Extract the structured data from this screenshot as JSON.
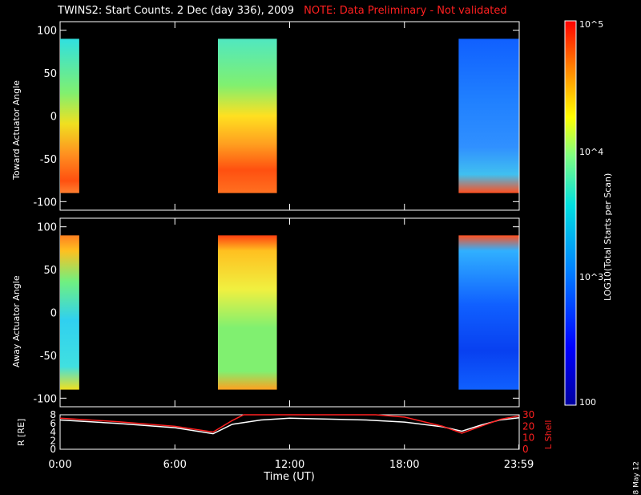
{
  "header": {
    "title": "TWINS2: Start Counts.  2 Dec (day 336), 2009",
    "note": "NOTE: Data Preliminary - Not validated"
  },
  "stamp": "8 May 12",
  "chart_data": [
    {
      "type": "heatmap",
      "panel": "top",
      "ylabel": "Toward Actuator Angle",
      "ylim": [
        -110,
        110
      ],
      "yticks": [
        "100",
        "50",
        "0",
        "-50",
        "-100"
      ],
      "xlim_hours": [
        0,
        24
      ],
      "blocks": [
        {
          "start": "0:00",
          "end": "1:00"
        },
        {
          "start": "8:15",
          "end": "11:20"
        },
        {
          "start": "20:50",
          "end": "23:59"
        }
      ]
    },
    {
      "type": "heatmap",
      "panel": "middle",
      "ylabel": "Away Actuator Angle",
      "ylim": [
        -110,
        110
      ],
      "yticks": [
        "100",
        "50",
        "0",
        "-50",
        "-100"
      ],
      "xlim_hours": [
        0,
        24
      ],
      "blocks": [
        {
          "start": "0:00",
          "end": "1:00"
        },
        {
          "start": "8:15",
          "end": "11:20"
        },
        {
          "start": "20:50",
          "end": "23:59"
        }
      ]
    },
    {
      "type": "line",
      "panel": "bottom",
      "ylabel_left": "R [RE]",
      "ylabel_right": "L Shell",
      "left_ylim": [
        0,
        8
      ],
      "right_ylim": [
        0,
        30
      ],
      "left_yticks": [
        "8",
        "6",
        "4",
        "2",
        "0"
      ],
      "right_yticks": [
        "30",
        "20",
        "10",
        "0"
      ],
      "xlabel": "Time (UT)",
      "xticks": [
        "0:00",
        "6:00",
        "12:00",
        "18:00",
        "23:59"
      ],
      "series": [
        {
          "name": "R",
          "color": "#ffffff",
          "points": [
            [
              0,
              6.8
            ],
            [
              3,
              6.0
            ],
            [
              6,
              5.0
            ],
            [
              8,
              3.6
            ],
            [
              9,
              5.8
            ],
            [
              10.5,
              6.8
            ],
            [
              12,
              7.2
            ],
            [
              14,
              7.0
            ],
            [
              16,
              6.8
            ],
            [
              18,
              6.3
            ],
            [
              20,
              5.2
            ],
            [
              21,
              4.2
            ],
            [
              22,
              5.6
            ],
            [
              23,
              6.8
            ],
            [
              23.98,
              7.3
            ]
          ]
        },
        {
          "name": "L Shell",
          "color": "#ff2020",
          "points": [
            [
              0,
              27
            ],
            [
              3,
              24
            ],
            [
              6,
              20
            ],
            [
              8,
              15
            ],
            [
              9,
              25
            ],
            [
              9.6,
              32
            ],
            [
              16.5,
              32
            ],
            [
              18,
              28
            ],
            [
              20,
              20
            ],
            [
              21,
              14
            ],
            [
              22,
              20
            ],
            [
              23,
              26
            ],
            [
              23.98,
              29
            ]
          ]
        }
      ]
    }
  ],
  "colorbar": {
    "label": "LOG10(Total Starts per Scan)",
    "ticks": [
      "10^5",
      "10^4",
      "10^3",
      "100"
    ],
    "scale": "log",
    "range": [
      100,
      100000
    ]
  },
  "colors": {
    "background": "#000000",
    "axes": "#ffffff",
    "warning": "#ff2020"
  }
}
